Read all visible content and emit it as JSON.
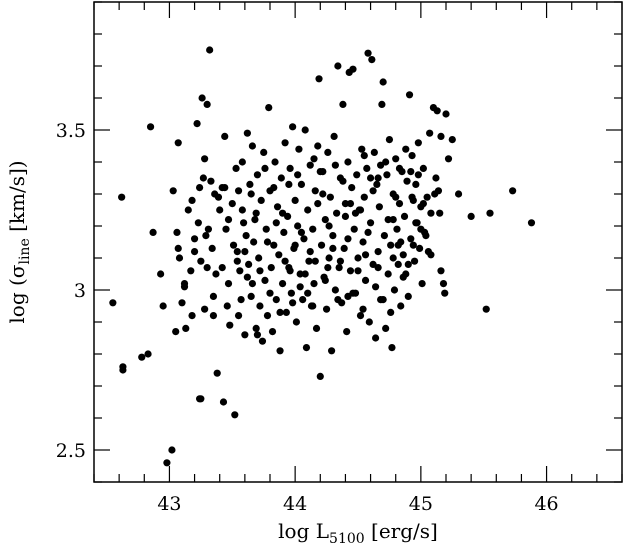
{
  "chart_data": {
    "type": "scatter",
    "title": "",
    "xlabel": {
      "prefix": "log L",
      "sub": "5100",
      "suffix": " [erg/s]"
    },
    "ylabel": {
      "prefix": "log (σ",
      "sub": "line",
      "suffix": " [km/s])"
    },
    "xlim": [
      42.4,
      46.6
    ],
    "ylim": [
      2.4,
      3.9
    ],
    "xticks": [
      43,
      44,
      45,
      46
    ],
    "xtick_labels": [
      "43",
      "44",
      "45",
      "46"
    ],
    "yticks": [
      2.5,
      3,
      3.5
    ],
    "ytick_labels": [
      "2.5",
      "3",
      "3.5"
    ],
    "grid": false,
    "marker_color": "#000000",
    "points": [
      [
        42.55,
        2.96
      ],
      [
        42.62,
        3.29
      ],
      [
        42.63,
        2.76
      ],
      [
        42.63,
        2.75
      ],
      [
        42.78,
        2.79
      ],
      [
        42.83,
        2.8
      ],
      [
        42.85,
        3.51
      ],
      [
        42.87,
        3.18
      ],
      [
        42.93,
        3.05
      ],
      [
        42.95,
        2.95
      ],
      [
        42.98,
        2.46
      ],
      [
        43.02,
        2.5
      ],
      [
        43.03,
        3.31
      ],
      [
        43.06,
        3.18
      ],
      [
        43.05,
        2.87
      ],
      [
        43.07,
        3.46
      ],
      [
        43.07,
        3.13
      ],
      [
        43.08,
        3.1
      ],
      [
        43.1,
        2.96
      ],
      [
        43.12,
        3.02
      ],
      [
        43.13,
        2.88
      ],
      [
        43.15,
        3.25
      ],
      [
        43.17,
        3.06
      ],
      [
        43.18,
        3.28
      ],
      [
        43.2,
        3.16
      ],
      [
        43.22,
        3.52
      ],
      [
        43.23,
        3.21
      ],
      [
        43.24,
        3.32
      ],
      [
        43.24,
        2.66
      ],
      [
        43.25,
        2.66
      ],
      [
        43.26,
        3.6
      ],
      [
        43.27,
        3.35
      ],
      [
        43.28,
        3.41
      ],
      [
        43.29,
        3.17
      ],
      [
        43.3,
        3.58
      ],
      [
        43.3,
        3.07
      ],
      [
        43.32,
        3.75
      ],
      [
        43.33,
        3.34
      ],
      [
        43.34,
        3.13
      ],
      [
        43.35,
        2.92
      ],
      [
        43.36,
        3.3
      ],
      [
        43.37,
        3.05
      ],
      [
        43.38,
        2.74
      ],
      [
        43.4,
        3.25
      ],
      [
        43.42,
        3.32
      ],
      [
        43.43,
        2.65
      ],
      [
        43.44,
        3.48
      ],
      [
        43.45,
        3.19
      ],
      [
        43.47,
        3.02
      ],
      [
        43.48,
        2.89
      ],
      [
        43.5,
        3.27
      ],
      [
        43.52,
        2.61
      ],
      [
        43.53,
        3.38
      ],
      [
        43.54,
        3.12
      ],
      [
        43.55,
        3.31
      ],
      [
        43.56,
        3.06
      ],
      [
        43.57,
        2.97
      ],
      [
        43.58,
        3.4
      ],
      [
        43.59,
        3.21
      ],
      [
        43.6,
        2.86
      ],
      [
        43.61,
        3.17
      ],
      [
        43.62,
        3.49
      ],
      [
        43.63,
        3.08
      ],
      [
        43.64,
        3.33
      ],
      [
        43.65,
        2.98
      ],
      [
        43.66,
        3.45
      ],
      [
        43.67,
        3.15
      ],
      [
        43.68,
        3.22
      ],
      [
        43.69,
        2.88
      ],
      [
        43.7,
        3.36
      ],
      [
        43.71,
        3.1
      ],
      [
        43.72,
        2.95
      ],
      [
        43.73,
        3.28
      ],
      [
        43.74,
        2.84
      ],
      [
        43.75,
        3.43
      ],
      [
        43.76,
        3.03
      ],
      [
        43.77,
        3.19
      ],
      [
        43.78,
        2.92
      ],
      [
        43.79,
        3.57
      ],
      [
        43.8,
        3.31
      ],
      [
        43.81,
        3.07
      ],
      [
        43.82,
        2.87
      ],
      [
        43.83,
        3.14
      ],
      [
        43.84,
        3.4
      ],
      [
        43.85,
        2.97
      ],
      [
        43.86,
        3.26
      ],
      [
        43.87,
        3.11
      ],
      [
        43.88,
        2.81
      ],
      [
        43.89,
        3.35
      ],
      [
        43.9,
        3.02
      ],
      [
        43.91,
        3.18
      ],
      [
        43.92,
        3.46
      ],
      [
        43.93,
        2.93
      ],
      [
        43.94,
        3.23
      ],
      [
        43.95,
        3.07
      ],
      [
        43.96,
        3.38
      ],
      [
        43.97,
        2.99
      ],
      [
        43.98,
        3.51
      ],
      [
        43.99,
        3.13
      ],
      [
        44.0,
        3.28
      ],
      [
        44.01,
        2.9
      ],
      [
        44.02,
        3.2
      ],
      [
        44.03,
        3.44
      ],
      [
        44.04,
        3.05
      ],
      [
        44.05,
        3.33
      ],
      [
        44.06,
        2.97
      ],
      [
        44.07,
        3.16
      ],
      [
        44.08,
        3.5
      ],
      [
        44.09,
        2.82
      ],
      [
        44.1,
        3.25
      ],
      [
        44.11,
        3.09
      ],
      [
        44.12,
        3.39
      ],
      [
        44.13,
        2.95
      ],
      [
        44.14,
        3.19
      ],
      [
        44.15,
        3.02
      ],
      [
        44.16,
        3.31
      ],
      [
        44.17,
        2.88
      ],
      [
        44.18,
        3.45
      ],
      [
        44.19,
        3.66
      ],
      [
        44.2,
        2.73
      ],
      [
        44.21,
        3.14
      ],
      [
        44.22,
        3.37
      ],
      [
        44.23,
        3.04
      ],
      [
        44.24,
        3.22
      ],
      [
        44.25,
        2.94
      ],
      [
        44.26,
        3.43
      ],
      [
        44.27,
        3.1
      ],
      [
        44.28,
        3.29
      ],
      [
        44.29,
        2.81
      ],
      [
        44.3,
        3.17
      ],
      [
        44.31,
        3.48
      ],
      [
        44.32,
        3.0
      ],
      [
        44.33,
        3.24
      ],
      [
        44.34,
        3.7
      ],
      [
        44.35,
        3.07
      ],
      [
        44.36,
        3.35
      ],
      [
        44.37,
        2.96
      ],
      [
        44.38,
        3.58
      ],
      [
        44.39,
        3.13
      ],
      [
        44.4,
        3.27
      ],
      [
        44.41,
        2.87
      ],
      [
        44.42,
        3.4
      ],
      [
        44.43,
        3.68
      ],
      [
        44.44,
        3.06
      ],
      [
        44.45,
        3.32
      ],
      [
        44.46,
        3.69
      ],
      [
        44.47,
        3.19
      ],
      [
        44.48,
        2.99
      ],
      [
        44.49,
        3.36
      ],
      [
        44.5,
        3.1
      ],
      [
        44.51,
        3.25
      ],
      [
        44.52,
        2.92
      ],
      [
        44.53,
        3.44
      ],
      [
        44.54,
        3.15
      ],
      [
        44.55,
        3.29
      ],
      [
        44.56,
        3.03
      ],
      [
        44.57,
        3.38
      ],
      [
        44.58,
        3.74
      ],
      [
        44.59,
        2.9
      ],
      [
        44.6,
        3.21
      ],
      [
        44.61,
        3.72
      ],
      [
        44.62,
        3.08
      ],
      [
        44.63,
        3.43
      ],
      [
        44.64,
        2.85
      ],
      [
        44.65,
        3.33
      ],
      [
        44.66,
        3.12
      ],
      [
        44.67,
        3.26
      ],
      [
        44.68,
        2.97
      ],
      [
        44.69,
        3.58
      ],
      [
        44.7,
        3.65
      ],
      [
        44.71,
        3.17
      ],
      [
        44.72,
        2.88
      ],
      [
        44.73,
        3.36
      ],
      [
        44.74,
        3.05
      ],
      [
        44.75,
        3.47
      ],
      [
        44.76,
        3.14
      ],
      [
        44.77,
        2.82
      ],
      [
        44.78,
        3.3
      ],
      [
        44.79,
        3.0
      ],
      [
        44.8,
        3.41
      ],
      [
        44.81,
        3.19
      ],
      [
        44.82,
        3.08
      ],
      [
        44.83,
        3.27
      ],
      [
        44.84,
        2.95
      ],
      [
        44.85,
        3.37
      ],
      [
        44.86,
        3.11
      ],
      [
        44.87,
        3.23
      ],
      [
        44.88,
        3.05
      ],
      [
        44.89,
        3.34
      ],
      [
        44.9,
        2.98
      ],
      [
        44.91,
        3.61
      ],
      [
        44.92,
        3.16
      ],
      [
        44.93,
        3.42
      ],
      [
        44.94,
        3.28
      ],
      [
        44.95,
        3.09
      ],
      [
        44.96,
        3.33
      ],
      [
        44.97,
        3.21
      ],
      [
        44.98,
        3.46
      ],
      [
        44.99,
        3.13
      ],
      [
        45.0,
        3.26
      ],
      [
        45.01,
        3.02
      ],
      [
        45.02,
        3.38
      ],
      [
        45.03,
        3.18
      ],
      [
        45.05,
        3.29
      ],
      [
        45.07,
        3.49
      ],
      [
        45.08,
        3.11
      ],
      [
        45.1,
        3.57
      ],
      [
        45.12,
        3.35
      ],
      [
        45.13,
        3.56
      ],
      [
        45.15,
        3.24
      ],
      [
        45.16,
        3.48
      ],
      [
        45.18,
        3.02
      ],
      [
        45.19,
        2.99
      ],
      [
        45.2,
        3.55
      ],
      [
        45.22,
        3.41
      ],
      [
        45.25,
        3.47
      ],
      [
        45.3,
        3.3
      ],
      [
        45.4,
        3.23
      ],
      [
        45.52,
        2.94
      ],
      [
        45.55,
        3.24
      ],
      [
        45.73,
        3.31
      ],
      [
        45.88,
        3.21
      ],
      [
        43.25,
        3.09
      ],
      [
        43.44,
        3.32
      ],
      [
        43.58,
        3.25
      ],
      [
        43.72,
        3.06
      ],
      [
        43.85,
        3.21
      ],
      [
        43.95,
        3.33
      ],
      [
        44.05,
        3.18
      ],
      [
        44.15,
        3.41
      ],
      [
        44.27,
        3.2
      ],
      [
        44.36,
        3.09
      ],
      [
        44.44,
        3.27
      ],
      [
        44.55,
        3.42
      ],
      [
        44.66,
        3.35
      ],
      [
        44.74,
        3.22
      ],
      [
        44.83,
        3.38
      ],
      [
        44.93,
        3.29
      ],
      [
        45.04,
        3.17
      ],
      [
        45.14,
        3.31
      ],
      [
        43.31,
        3.19
      ],
      [
        43.51,
        3.14
      ],
      [
        43.65,
        3.3
      ],
      [
        43.78,
        3.15
      ],
      [
        43.92,
        3.09
      ],
      [
        44.02,
        3.36
      ],
      [
        44.12,
        3.12
      ],
      [
        44.22,
        3.3
      ],
      [
        44.32,
        3.39
      ],
      [
        44.42,
        3.16
      ],
      [
        44.52,
        3.25
      ],
      [
        44.62,
        3.31
      ],
      [
        44.72,
        3.4
      ],
      [
        44.82,
        3.14
      ],
      [
        44.92,
        3.37
      ],
      [
        45.02,
        3.27
      ],
      [
        43.39,
        3.29
      ],
      [
        43.6,
        3.12
      ],
      [
        43.76,
        3.38
      ],
      [
        43.9,
        3.24
      ],
      [
        44.08,
        3.05
      ],
      [
        44.18,
        3.27
      ],
      [
        44.38,
        3.34
      ],
      [
        44.48,
        3.24
      ],
      [
        44.58,
        3.18
      ],
      [
        44.68,
        3.39
      ],
      [
        44.78,
        3.22
      ],
      [
        44.88,
        3.44
      ],
      [
        44.98,
        3.36
      ],
      [
        45.08,
        3.24
      ],
      [
        43.47,
        3.22
      ],
      [
        43.69,
        3.24
      ],
      [
        43.83,
        3.32
      ],
      [
        44.0,
        3.14
      ],
      [
        44.2,
        3.37
      ],
      [
        44.4,
        3.23
      ],
      [
        44.6,
        3.35
      ],
      [
        44.8,
        3.29
      ],
      [
        44.96,
        3.21
      ],
      [
        45.11,
        3.3
      ],
      [
        43.55,
        2.92
      ],
      [
        43.7,
        2.86
      ],
      [
        43.88,
        2.93
      ],
      [
        44.14,
        2.95
      ],
      [
        44.34,
        2.97
      ],
      [
        44.46,
        2.99
      ],
      [
        44.64,
        3.01
      ],
      [
        44.76,
        2.93
      ],
      [
        44.86,
        3.04
      ],
      [
        43.35,
        2.98
      ],
      [
        43.66,
        3.02
      ],
      [
        43.8,
        2.99
      ],
      [
        44.04,
        3.01
      ],
      [
        44.24,
        3.03
      ],
      [
        44.5,
        3.06
      ],
      [
        44.7,
        2.97
      ],
      [
        44.9,
        3.08
      ],
      [
        45.06,
        3.12
      ],
      [
        43.42,
        3.07
      ],
      [
        43.62,
        3.04
      ],
      [
        43.96,
        3.06
      ],
      [
        44.16,
        3.09
      ],
      [
        44.3,
        3.13
      ],
      [
        44.56,
        3.11
      ],
      [
        44.84,
        3.15
      ],
      [
        45.0,
        3.19
      ],
      [
        43.12,
        3.01
      ],
      [
        43.2,
        3.12
      ],
      [
        43.18,
        2.92
      ],
      [
        43.28,
        2.94
      ],
      [
        43.46,
        2.95
      ],
      [
        43.54,
        3.09
      ],
      [
        43.98,
        2.96
      ],
      [
        44.1,
        2.99
      ],
      [
        44.26,
        3.07
      ],
      [
        44.42,
        2.98
      ],
      [
        44.54,
        2.94
      ],
      [
        44.66,
        3.07
      ],
      [
        44.78,
        3.1
      ],
      [
        44.94,
        3.14
      ],
      [
        45.16,
        3.06
      ]
    ]
  }
}
